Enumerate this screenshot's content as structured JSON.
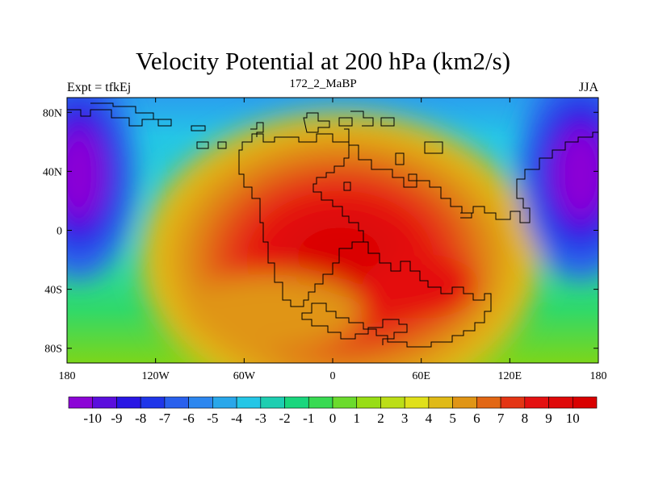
{
  "title": "Velocity Potential at 200 hPa (km2/s)",
  "subtitle_left": "Expt = tfkEj",
  "subtitle_center": "172_2_MaBP",
  "subtitle_right": "JJA",
  "y_ticks": [
    "80N",
    "40N",
    "0",
    "40S",
    "80S"
  ],
  "x_ticks": [
    "180",
    "120W",
    "60W",
    "0",
    "60E",
    "120E",
    "180"
  ],
  "colorbar_labels": [
    "-10",
    "-9",
    "-8",
    "-7",
    "-6",
    "-5",
    "-4",
    "-3",
    "-2",
    "-1",
    "0",
    "1",
    "2",
    "3",
    "4",
    "5",
    "6",
    "7",
    "8",
    "9",
    "10"
  ],
  "colors": {
    "ramp": [
      "#8c05d6",
      "#1919e6",
      "#2f7df0",
      "#24c6e6",
      "#17d96b",
      "#8cdc14",
      "#e0e01a",
      "#e08814",
      "#e61414",
      "#d90000"
    ]
  },
  "chart_data": {
    "type": "heatmap",
    "field": "velocity potential",
    "units": "km2/s",
    "level_hPa": 200,
    "season": "JJA",
    "xlim": [
      -180,
      180
    ],
    "ylim": [
      -90,
      90
    ],
    "contour_levels": [
      -10,
      -9,
      -8,
      -7,
      -6,
      -5,
      -4,
      -3,
      -2,
      -1,
      0,
      1,
      2,
      3,
      4,
      5,
      6,
      7,
      8,
      9,
      10
    ],
    "features": [
      {
        "kind": "minimum",
        "lon": -170,
        "lat": 40,
        "value": -10
      },
      {
        "kind": "minimum",
        "lon": 165,
        "lat": 40,
        "value": -10
      },
      {
        "kind": "maximum",
        "lon": 5,
        "lat": -25,
        "value": 10
      }
    ]
  }
}
